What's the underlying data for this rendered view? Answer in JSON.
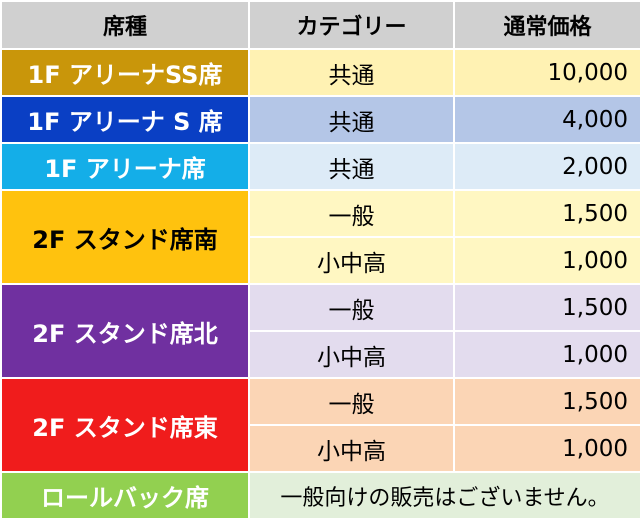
{
  "headers": {
    "seat": "席種",
    "category": "カテゴリー",
    "price": "通常価格"
  },
  "rows": [
    {
      "seat": "1F アリーナSS席",
      "seat_bg": "#c9960a",
      "seat_color": "#ffffff",
      "row_bg": "#fff2b3",
      "items": [
        {
          "category": "共通",
          "price": "10,000"
        }
      ]
    },
    {
      "seat": "1F アリーナ S 席",
      "seat_bg": "#0a3fc4",
      "seat_color": "#ffffff",
      "row_bg": "#b4c6e7",
      "items": [
        {
          "category": "共通",
          "price": "4,000"
        }
      ]
    },
    {
      "seat": "1F アリーナ席",
      "seat_bg": "#14aee8",
      "seat_color": "#ffffff",
      "row_bg": "#ddebf7",
      "items": [
        {
          "category": "共通",
          "price": "2,000"
        }
      ]
    },
    {
      "seat": "2F スタンド席南",
      "seat_bg": "#ffc20e",
      "seat_color": "#000000",
      "row_bg": "#fff7c2",
      "items": [
        {
          "category": "一般",
          "price": "1,500"
        },
        {
          "category": "小中高",
          "price": "1,000"
        }
      ]
    },
    {
      "seat": "2F スタンド席北",
      "seat_bg": "#7030a0",
      "seat_color": "#ffffff",
      "row_bg": "#e3dcee",
      "items": [
        {
          "category": "一般",
          "price": "1,500"
        },
        {
          "category": "小中高",
          "price": "1,000"
        }
      ]
    },
    {
      "seat": "2F スタンド席東",
      "seat_bg": "#f01c1c",
      "seat_color": "#ffffff",
      "row_bg": "#fbd5b5",
      "items": [
        {
          "category": "一般",
          "price": "1,500"
        },
        {
          "category": "小中高",
          "price": "1,000"
        }
      ]
    }
  ],
  "rollback": {
    "seat": "ロールバック席",
    "seat_bg": "#92d050",
    "seat_color": "#ffffff",
    "row_bg": "#e2efda",
    "note": "一般向けの販売はございません。"
  }
}
